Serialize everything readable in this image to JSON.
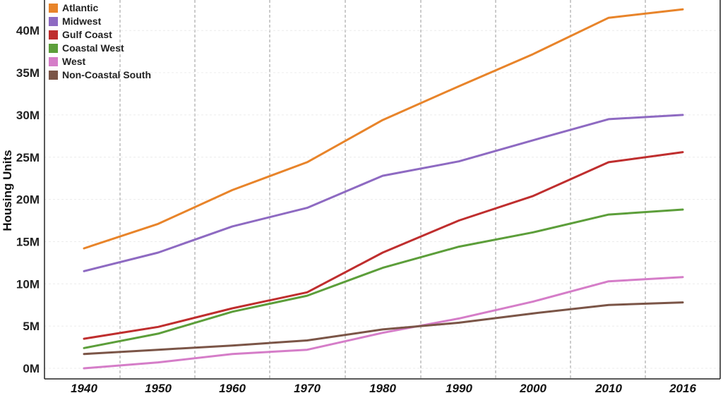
{
  "chart_data": {
    "type": "line",
    "title": "",
    "xlabel": "",
    "ylabel": "Housing Units",
    "x": [
      1940,
      1950,
      1960,
      1970,
      1980,
      1990,
      2000,
      2010,
      2016
    ],
    "x_tick_labels": [
      "1940",
      "1950",
      "1960",
      "1970",
      "1980",
      "1990",
      "2000",
      "2010",
      "2016"
    ],
    "ylim": [
      0,
      42800000
    ],
    "y_ticks": [
      0,
      5000000,
      10000000,
      15000000,
      20000000,
      25000000,
      30000000,
      35000000,
      40000000
    ],
    "y_tick_labels": [
      "0M",
      "5M",
      "10M",
      "15M",
      "20M",
      "25M",
      "30M",
      "35M",
      "40M"
    ],
    "legend_position": "top-left",
    "series": [
      {
        "name": "Atlantic",
        "color": "#E8842A",
        "values": [
          14200000,
          17100000,
          21100000,
          24400000,
          29400000,
          33400000,
          37200000,
          41500000,
          42500000
        ]
      },
      {
        "name": "Midwest",
        "color": "#8E6AC2",
        "values": [
          11500000,
          13700000,
          16800000,
          19000000,
          22800000,
          24500000,
          27000000,
          29500000,
          30000000
        ]
      },
      {
        "name": "Gulf Coast",
        "color": "#BF2E2E",
        "values": [
          3500000,
          4900000,
          7100000,
          9000000,
          13700000,
          17500000,
          20400000,
          24400000,
          25600000
        ]
      },
      {
        "name": "Coastal West",
        "color": "#5C9E3A",
        "values": [
          2400000,
          4100000,
          6700000,
          8600000,
          11900000,
          14400000,
          16100000,
          18200000,
          18800000
        ]
      },
      {
        "name": "West",
        "color": "#D57DC8",
        "values": [
          0,
          700000,
          1700000,
          2200000,
          4200000,
          5900000,
          7900000,
          10300000,
          10800000
        ]
      },
      {
        "name": "Non-Coastal South",
        "color": "#7B5547",
        "values": [
          1700000,
          2200000,
          2700000,
          3300000,
          4600000,
          5400000,
          6500000,
          7500000,
          7800000
        ]
      }
    ]
  }
}
